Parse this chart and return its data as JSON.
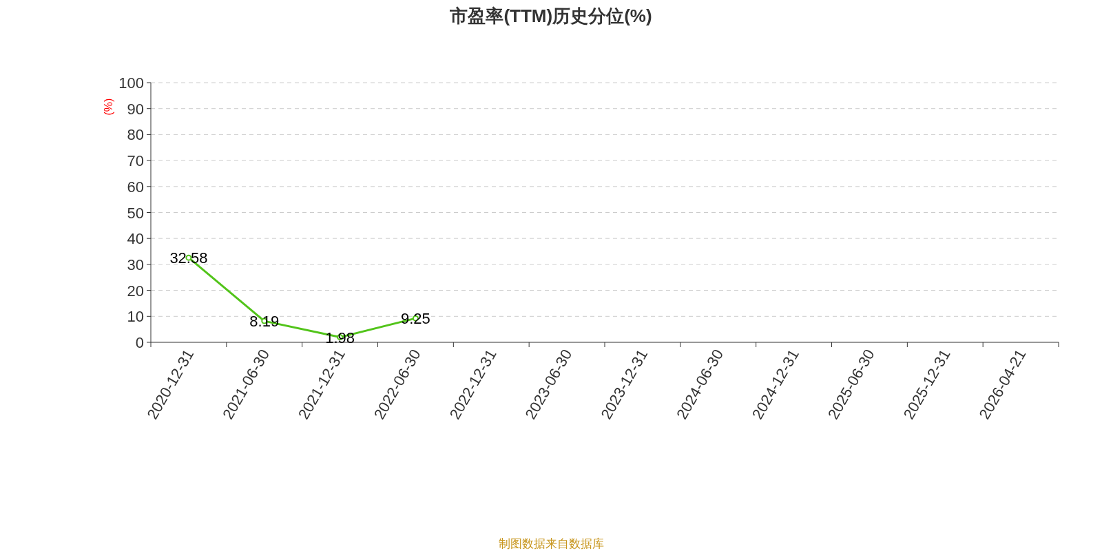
{
  "chart_data": {
    "type": "line",
    "title": "市盈率(TTM)历史分位(%)",
    "ylabel": "(%)",
    "categories": [
      "2020-12-31",
      "2021-06-30",
      "2021-12-31",
      "2022-06-30",
      "2022-12-31",
      "2023-06-30",
      "2023-12-31",
      "2024-06-30",
      "2024-12-31",
      "2025-06-30",
      "2025-12-31",
      "2026-04-21"
    ],
    "series": [
      {
        "color": "#52c41a",
        "values": [
          32.58,
          8.19,
          1.98,
          9.25,
          null,
          null,
          null,
          null,
          null,
          null,
          null,
          null
        ]
      }
    ],
    "ylim": [
      0,
      100
    ],
    "yticks": [
      0,
      10,
      20,
      30,
      40,
      50,
      60,
      70,
      80,
      90,
      100
    ],
    "grid": "y",
    "marker": "circle",
    "data_labels": true,
    "annotations": [
      "制图数据来自数据库"
    ]
  }
}
